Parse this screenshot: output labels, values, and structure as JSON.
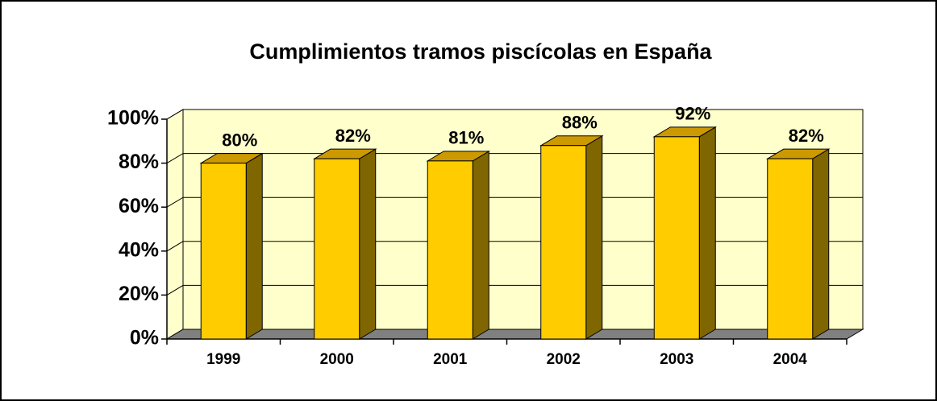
{
  "chart_data": {
    "type": "bar3d",
    "title": "Cumplimientos tramos piscícolas en España",
    "categories": [
      "1999",
      "2000",
      "2001",
      "2002",
      "2003",
      "2004"
    ],
    "values": [
      80,
      82,
      81,
      88,
      92,
      82
    ],
    "value_labels": [
      "80%",
      "82%",
      "81%",
      "88%",
      "92%",
      "82%"
    ],
    "color": "#ffcc00",
    "ylim": [
      0,
      100
    ],
    "yticks": [
      {
        "value": 0,
        "label": "0%"
      },
      {
        "value": 20,
        "label": "20%"
      },
      {
        "value": 40,
        "label": "40%"
      },
      {
        "value": 60,
        "label": "60%"
      },
      {
        "value": 80,
        "label": "80%"
      },
      {
        "value": 100,
        "label": "100%"
      }
    ],
    "grid": true
  }
}
